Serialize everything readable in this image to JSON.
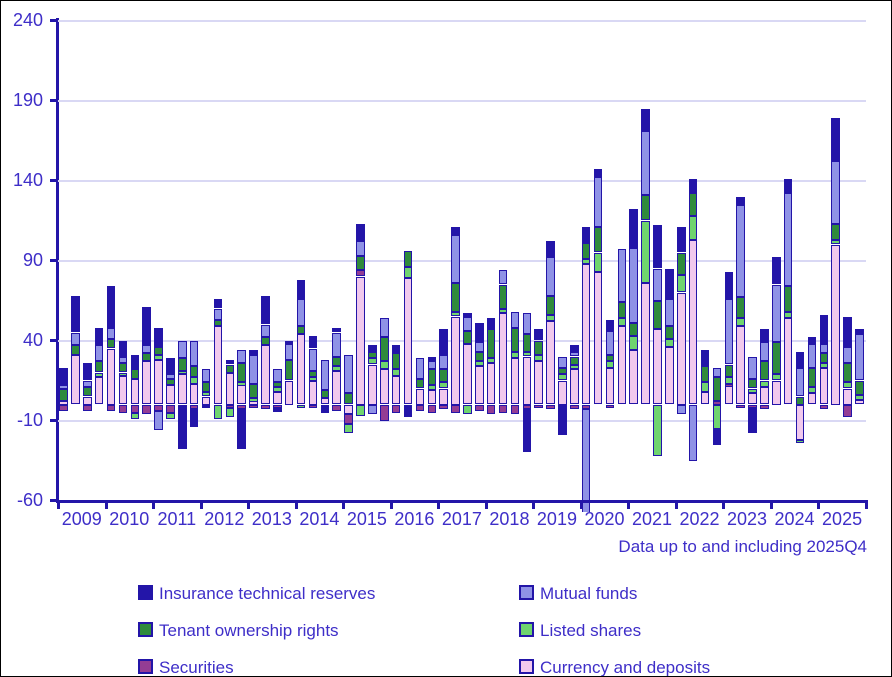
{
  "footnote": "Data up to and including 2025Q4",
  "colors": {
    "axis": "#2315A8",
    "grid": "#D9D8F4",
    "text": "#3E2EC8",
    "background": "#ffffff"
  },
  "chart_data": {
    "type": "bar",
    "subtype": "stacked-quarterly",
    "title": "",
    "xlabel": "",
    "ylabel": "",
    "ylim": [
      -60,
      240
    ],
    "y_ticks": [
      240,
      190,
      140,
      90,
      40,
      -10,
      -60
    ],
    "grid": "horizontal",
    "legend_position": "bottom-two-columns",
    "years": [
      "2009",
      "2010",
      "2011",
      "2012",
      "2013",
      "2014",
      "2015",
      "2016",
      "2017",
      "2018",
      "2019",
      "2020",
      "2021",
      "2022",
      "2023",
      "2024",
      "2025"
    ],
    "bars_per_year": 4,
    "footnote": "Data up to and including 2025Q4",
    "series": [
      {
        "name": "Currency and deposits",
        "color": "#F1C9ED",
        "values": [
          2,
          31,
          5,
          17,
          35,
          18,
          16,
          27,
          28,
          12,
          19,
          13,
          5,
          49,
          20,
          12,
          2,
          37,
          8,
          15,
          44,
          15,
          4,
          21,
          -6,
          80,
          25,
          22,
          18,
          79,
          10,
          9,
          10,
          55,
          38,
          24,
          26,
          57,
          29,
          30,
          27,
          52,
          15,
          22,
          88,
          83,
          23,
          49,
          34,
          76,
          47,
          36,
          70,
          103,
          8,
          1,
          12,
          49,
          7,
          11,
          15,
          54,
          -22,
          7,
          23,
          100,
          10,
          3
        ]
      },
      {
        "name": "Securities",
        "color": "#943D94",
        "values": [
          -4,
          0,
          -4,
          0,
          -4,
          -5,
          -5,
          -6,
          -4,
          -5,
          0,
          -3,
          0,
          0,
          -2,
          -3,
          -2,
          -3,
          -2,
          0,
          0,
          -2,
          0,
          -4,
          -6,
          4,
          0,
          -10,
          -5,
          0,
          -4,
          -5,
          -3,
          -5,
          0,
          -4,
          -6,
          -5,
          -6,
          -3,
          -2,
          -3,
          0,
          -3,
          -3,
          0,
          -2,
          0,
          0,
          0,
          0,
          0,
          0,
          0,
          0,
          1,
          1,
          -2,
          -2,
          -3,
          0,
          0,
          0,
          0,
          -3,
          0,
          -8,
          0
        ]
      },
      {
        "name": "Listed shares",
        "color": "#6FD46E",
        "values": [
          0,
          0,
          0,
          3,
          0,
          2,
          -4,
          0,
          3,
          -4,
          2,
          4,
          3,
          -9,
          -6,
          2,
          2,
          0,
          3,
          0,
          -2,
          2,
          0,
          3,
          -6,
          -7,
          4,
          5,
          4,
          7,
          0,
          3,
          4,
          3,
          -6,
          3,
          3,
          3,
          4,
          3,
          4,
          4,
          4,
          3,
          3,
          12,
          4,
          5,
          9,
          39,
          -32,
          5,
          11,
          15,
          6,
          -15,
          4,
          5,
          3,
          4,
          4,
          4,
          -2,
          4,
          3,
          3,
          4,
          3
        ]
      },
      {
        "name": "Tenant ownership rights",
        "color": "#2F8B3C",
        "values": [
          8,
          6,
          6,
          7,
          6,
          6,
          6,
          5,
          5,
          4,
          8,
          7,
          6,
          4,
          5,
          12,
          9,
          5,
          3,
          13,
          5,
          4,
          5,
          6,
          7,
          9,
          4,
          15,
          10,
          10,
          6,
          10,
          8,
          18,
          8,
          6,
          18,
          15,
          15,
          11,
          9,
          12,
          4,
          5,
          10,
          16,
          4,
          10,
          8,
          16,
          18,
          8,
          14,
          14,
          10,
          15,
          8,
          13,
          6,
          12,
          20,
          16,
          5,
          12,
          6,
          10,
          12,
          9
        ]
      },
      {
        "name": "Mutual funds",
        "color": "#8F92E6",
        "values": [
          2,
          8,
          4,
          10,
          7,
          4,
          0,
          5,
          -12,
          3,
          11,
          16,
          8,
          7,
          0,
          8,
          18,
          8,
          8,
          10,
          17,
          14,
          19,
          15,
          24,
          9,
          -6,
          12,
          0,
          0,
          13,
          5,
          9,
          30,
          9,
          6,
          0,
          9,
          10,
          13,
          0,
          24,
          7,
          3,
          -75,
          31,
          15,
          33,
          47,
          40,
          20,
          17,
          -6,
          -35,
          0,
          6,
          41,
          58,
          14,
          12,
          36,
          58,
          18,
          15,
          6,
          39,
          10,
          29
        ]
      },
      {
        "name": "Insurance technical reserves",
        "color": "#2315A8",
        "values": [
          11,
          23,
          11,
          11,
          26,
          10,
          9,
          24,
          12,
          10,
          -28,
          -11,
          -2,
          6,
          3,
          -25,
          3,
          18,
          -3,
          2,
          12,
          8,
          -5,
          3,
          0,
          11,
          4,
          0,
          5,
          -8,
          0,
          3,
          16,
          5,
          2,
          12,
          7,
          0,
          0,
          -27,
          7,
          10,
          -19,
          4,
          10,
          5,
          7,
          0,
          24,
          14,
          27,
          19,
          16,
          9,
          10,
          -10,
          17,
          5,
          -16,
          8,
          17,
          9,
          10,
          4,
          18,
          27,
          19,
          3
        ]
      }
    ],
    "legend_display_order": [
      "Insurance technical reserves",
      "Mutual funds",
      "Tenant ownership rights",
      "Listed shares",
      "Securities",
      "Currency and deposits"
    ]
  }
}
